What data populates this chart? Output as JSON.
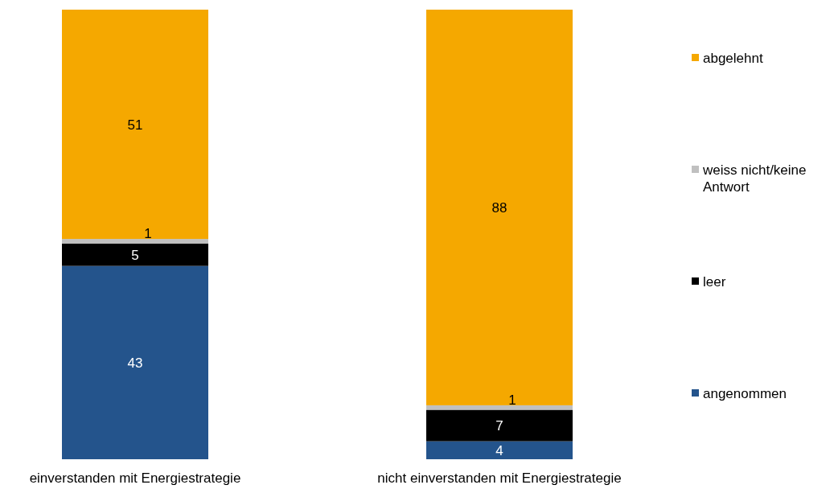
{
  "chart_data": {
    "type": "bar",
    "stacked": true,
    "categories": [
      "einverstanden mit Energiestrategie",
      "nicht einverstanden mit Energiestrategie"
    ],
    "series": [
      {
        "name": "angenommen",
        "color": "#24548c",
        "values": [
          43,
          4
        ]
      },
      {
        "name": "leer",
        "color": "#000000",
        "values": [
          5,
          7
        ]
      },
      {
        "name": "weiss nicht/keine Antwort",
        "color": "#c0c0c0",
        "values": [
          1,
          1
        ]
      },
      {
        "name": "abgelehnt",
        "color": "#f5a800",
        "values": [
          51,
          88
        ]
      }
    ],
    "ylim": [
      0,
      100
    ],
    "tick_labels": "x",
    "data_labels": true,
    "legend": "right"
  }
}
